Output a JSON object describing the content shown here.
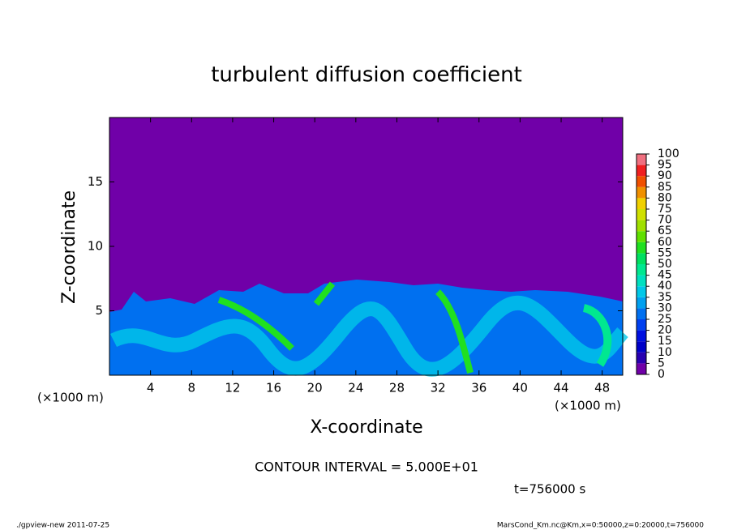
{
  "chart_data": {
    "type": "contour",
    "title": "turbulent diffusion coefficient",
    "xlabel": "X-coordinate",
    "ylabel": "Z-coordinate",
    "x_unit": "(×1000 m)",
    "y_unit": "(×1000 m)",
    "xlim": [
      0,
      50
    ],
    "xticks": [
      4,
      8,
      12,
      16,
      20,
      24,
      28,
      32,
      36,
      40,
      44,
      48
    ],
    "ylim": [
      0,
      20
    ],
    "yticks": [
      5,
      10,
      15
    ],
    "background_color": "#7000a8",
    "colorbar": {
      "levels": [
        0,
        5,
        10,
        15,
        20,
        25,
        30,
        35,
        40,
        45,
        50,
        55,
        60,
        65,
        70,
        75,
        80,
        85,
        90,
        95,
        100
      ],
      "colors": [
        "#7000a8",
        "#2800b0",
        "#0000c8",
        "#0010e0",
        "#0040f0",
        "#0070f0",
        "#00a0f0",
        "#00c8e8",
        "#00e0c0",
        "#00e890",
        "#00e060",
        "#20e020",
        "#60e000",
        "#a0e000",
        "#d0e000",
        "#f0d000",
        "#f09000",
        "#f05000",
        "#f02020",
        "#f07080"
      ]
    },
    "contour_note": "CONTOUR INTERVAL = 5.000E+01",
    "time_note": "t=756000 s",
    "footer_left": "./gpview-new  2011-07-25",
    "footer_right": "MarsCond_Km.nc@Km,x=0:50000,z=0:20000,t=756000"
  }
}
